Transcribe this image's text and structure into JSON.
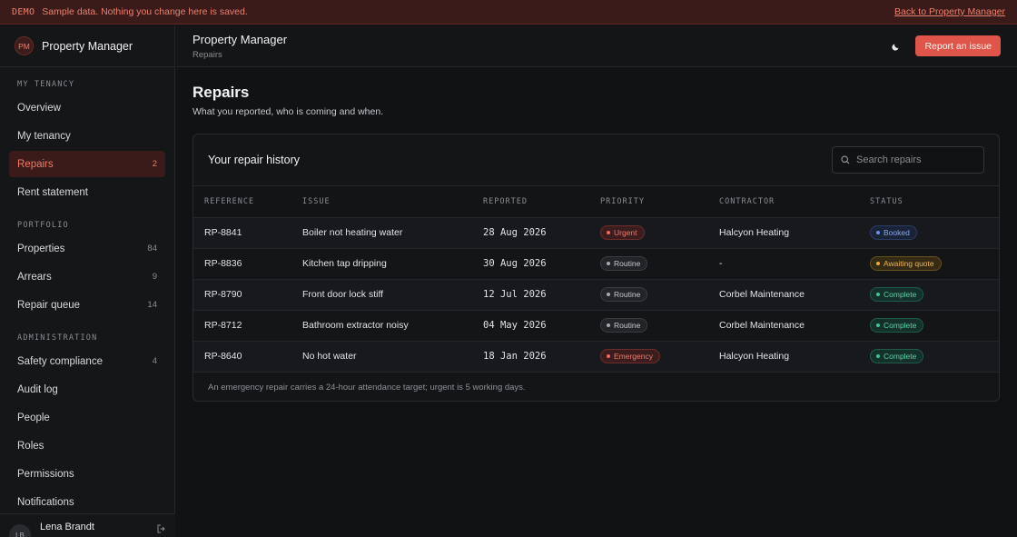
{
  "banner": {
    "tag": "DEMO",
    "message": "Sample data. Nothing you change here is saved.",
    "back_link": "Back to Property Manager"
  },
  "sidebar": {
    "logo_initials": "PM",
    "app_name": "Property Manager",
    "sections": [
      {
        "heading": "MY TENANCY",
        "items": [
          {
            "label": "Overview",
            "count": ""
          },
          {
            "label": "My tenancy",
            "count": ""
          },
          {
            "label": "Repairs",
            "count": "2",
            "active": true
          },
          {
            "label": "Rent statement",
            "count": ""
          }
        ]
      },
      {
        "heading": "PORTFOLIO",
        "items": [
          {
            "label": "Properties",
            "count": "84"
          },
          {
            "label": "Arrears",
            "count": "9"
          },
          {
            "label": "Repair queue",
            "count": "14"
          }
        ]
      },
      {
        "heading": "ADMINISTRATION",
        "items": [
          {
            "label": "Safety compliance",
            "count": "4"
          },
          {
            "label": "Audit log",
            "count": ""
          },
          {
            "label": "People",
            "count": ""
          },
          {
            "label": "Roles",
            "count": ""
          },
          {
            "label": "Permissions",
            "count": ""
          },
          {
            "label": "Notifications",
            "count": ""
          }
        ]
      }
    ],
    "user": {
      "initials": "LB",
      "name": "Lena Brandt",
      "signout_icon": "sign-out-icon"
    }
  },
  "header": {
    "title": "Property Manager",
    "breadcrumb": "Repairs",
    "theme_icon": "moon-icon",
    "report_button": "Report an issue"
  },
  "main": {
    "title": "Repairs",
    "subtitle": "What you reported, who is coming and when."
  },
  "card": {
    "title": "Your repair history",
    "search_placeholder": "Search repairs",
    "columns": [
      "REFERENCE",
      "ISSUE",
      "REPORTED",
      "PRIORITY",
      "CONTRACTOR",
      "STATUS"
    ],
    "rows": [
      {
        "reference": "RP-8841",
        "issue": "Boiler not heating water",
        "reported": "28 Aug 2026",
        "priority": "Urgent",
        "contractor": "Halcyon Heating",
        "status": "Booked"
      },
      {
        "reference": "RP-8836",
        "issue": "Kitchen tap dripping",
        "reported": "30 Aug 2026",
        "priority": "Routine",
        "contractor": "-",
        "status": "Awaiting quote"
      },
      {
        "reference": "RP-8790",
        "issue": "Front door lock stiff",
        "reported": "12 Jul 2026",
        "priority": "Routine",
        "contractor": "Corbel Maintenance",
        "status": "Complete"
      },
      {
        "reference": "RP-8712",
        "issue": "Bathroom extractor noisy",
        "reported": "04 May 2026",
        "priority": "Routine",
        "contractor": "Corbel Maintenance",
        "status": "Complete"
      },
      {
        "reference": "RP-8640",
        "issue": "No hot water",
        "reported": "18 Jan 2026",
        "priority": "Emergency",
        "contractor": "Halcyon Heating",
        "status": "Complete"
      }
    ],
    "footnote": "An emergency repair carries a 24-hour attendance target; urgent is 5 working days."
  },
  "colors": {
    "accent": "#e0554a",
    "background": "#111214",
    "sidebar": "#151618"
  }
}
